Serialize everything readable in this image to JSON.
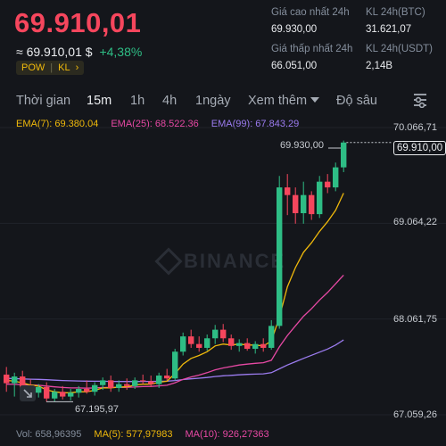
{
  "header": {
    "price": "69.910,01",
    "approx_prefix": "≈",
    "approx_value": "69.910,01 $",
    "change": "+4,38%",
    "tags": [
      "POW",
      "KL"
    ],
    "tag_arrow": "›"
  },
  "stats": {
    "high_label": "Giá cao nhất 24h",
    "high_value": "69.930,00",
    "vol_btc_label": "KL 24h(BTC)",
    "vol_btc_value": "31.621,07",
    "low_label": "Giá thấp nhất 24h",
    "low_value": "66.051,00",
    "vol_usdt_label": "KL 24h(USDT)",
    "vol_usdt_value": "2,14B"
  },
  "tabs": {
    "time": "Thời gian",
    "m15": "15m",
    "h1": "1h",
    "h4": "4h",
    "day1": "1ngày",
    "more": "Xem thêm",
    "depth": "Độ sâu"
  },
  "ema": {
    "ema7": "EMA(7): 69.380,04",
    "ema25": "EMA(25): 68.522,36",
    "ema99": "EMA(99): 67.843,29"
  },
  "volume": {
    "vol": "Vol: 658,96395",
    "ma5": "MA(5): 577,97983",
    "ma10": "MA(10): 926,27363"
  },
  "chart_data": {
    "type": "candlestick",
    "y_axis_labels": [
      "70.066,71",
      "69.064,22",
      "68.061,75",
      "67.059,26"
    ],
    "y_axis_values": [
      70066.71,
      69064.22,
      68061.75,
      67059.26
    ],
    "high_marker": "69.930,00",
    "low_marker": "67.195,97",
    "last_price_label": "69.910,00",
    "watermark": "BINANCE",
    "colors": {
      "up": "#2ebd85",
      "down": "#f6465d",
      "ema7": "#f0b90b",
      "ema25": "#e749a4",
      "ema99": "#9c7cf0"
    },
    "candles": [
      {
        "o": 67480,
        "h": 67560,
        "l": 67300,
        "c": 67390
      },
      {
        "o": 67390,
        "h": 67500,
        "l": 67250,
        "c": 67460
      },
      {
        "o": 67460,
        "h": 67520,
        "l": 67300,
        "c": 67340
      },
      {
        "o": 67340,
        "h": 67430,
        "l": 67230,
        "c": 67290
      },
      {
        "o": 67290,
        "h": 67380,
        "l": 67240,
        "c": 67350
      },
      {
        "o": 67350,
        "h": 67400,
        "l": 67196,
        "c": 67230
      },
      {
        "o": 67230,
        "h": 67330,
        "l": 67196,
        "c": 67300
      },
      {
        "o": 67300,
        "h": 67360,
        "l": 67220,
        "c": 67250
      },
      {
        "o": 67250,
        "h": 67330,
        "l": 67210,
        "c": 67290
      },
      {
        "o": 67290,
        "h": 67360,
        "l": 67240,
        "c": 67330
      },
      {
        "o": 67330,
        "h": 67420,
        "l": 67280,
        "c": 67300
      },
      {
        "o": 67300,
        "h": 67400,
        "l": 67260,
        "c": 67370
      },
      {
        "o": 67370,
        "h": 67450,
        "l": 67320,
        "c": 67420
      },
      {
        "o": 67420,
        "h": 67470,
        "l": 67300,
        "c": 67340
      },
      {
        "o": 67340,
        "h": 67420,
        "l": 67300,
        "c": 67380
      },
      {
        "o": 67380,
        "h": 67440,
        "l": 67320,
        "c": 67360
      },
      {
        "o": 67360,
        "h": 67450,
        "l": 67330,
        "c": 67420
      },
      {
        "o": 67420,
        "h": 67480,
        "l": 67380,
        "c": 67410
      },
      {
        "o": 67410,
        "h": 67470,
        "l": 67350,
        "c": 67380
      },
      {
        "o": 67380,
        "h": 67500,
        "l": 67340,
        "c": 67470
      },
      {
        "o": 67470,
        "h": 67540,
        "l": 67420,
        "c": 67440
      },
      {
        "o": 67440,
        "h": 67750,
        "l": 67420,
        "c": 67720
      },
      {
        "o": 67720,
        "h": 67920,
        "l": 67680,
        "c": 67880
      },
      {
        "o": 67880,
        "h": 67950,
        "l": 67760,
        "c": 67800
      },
      {
        "o": 67800,
        "h": 67880,
        "l": 67720,
        "c": 67760
      },
      {
        "o": 67760,
        "h": 67900,
        "l": 67730,
        "c": 67860
      },
      {
        "o": 67860,
        "h": 68000,
        "l": 67800,
        "c": 67950
      },
      {
        "o": 67950,
        "h": 68010,
        "l": 67820,
        "c": 67860
      },
      {
        "o": 67860,
        "h": 67900,
        "l": 67740,
        "c": 67780
      },
      {
        "o": 67780,
        "h": 67850,
        "l": 67720,
        "c": 67810
      },
      {
        "o": 67810,
        "h": 67860,
        "l": 67730,
        "c": 67750
      },
      {
        "o": 67750,
        "h": 67830,
        "l": 67700,
        "c": 67800
      },
      {
        "o": 67800,
        "h": 67860,
        "l": 67720,
        "c": 67760
      },
      {
        "o": 67760,
        "h": 68050,
        "l": 67740,
        "c": 67990
      },
      {
        "o": 67990,
        "h": 69560,
        "l": 67960,
        "c": 69440
      },
      {
        "o": 69440,
        "h": 69580,
        "l": 69150,
        "c": 69360
      },
      {
        "o": 69360,
        "h": 69440,
        "l": 69060,
        "c": 69170
      },
      {
        "o": 69170,
        "h": 69500,
        "l": 69060,
        "c": 69360
      },
      {
        "o": 69360,
        "h": 69400,
        "l": 69100,
        "c": 69160
      },
      {
        "o": 69160,
        "h": 69560,
        "l": 69120,
        "c": 69500
      },
      {
        "o": 69500,
        "h": 69580,
        "l": 69380,
        "c": 69440
      },
      {
        "o": 69440,
        "h": 69700,
        "l": 69400,
        "c": 69650
      },
      {
        "o": 69650,
        "h": 69930,
        "l": 69600,
        "c": 69910
      }
    ],
    "ema7_line": [
      67420,
      67410,
      67395,
      67370,
      67360,
      67320,
      67300,
      67290,
      67290,
      67300,
      67300,
      67315,
      67340,
      67340,
      67350,
      67352,
      67370,
      67380,
      67380,
      67400,
      67410,
      67490,
      67590,
      67650,
      67680,
      67720,
      67780,
      67800,
      67790,
      67800,
      67790,
      67790,
      67780,
      67830,
      68080,
      68400,
      68600,
      68760,
      68860,
      68980,
      69080,
      69200,
      69380
    ],
    "ema25_line": [
      67380,
      67378,
      67375,
      67370,
      67368,
      67360,
      67352,
      67345,
      67340,
      67340,
      67338,
      67340,
      67345,
      67345,
      67346,
      67347,
      67350,
      67354,
      67356,
      67362,
      67368,
      67395,
      67430,
      67455,
      67475,
      67500,
      67530,
      67550,
      67565,
      67580,
      67590,
      67598,
      67605,
      67630,
      67770,
      67890,
      67990,
      68090,
      68170,
      68260,
      68340,
      68430,
      68522
    ],
    "ema99_line": [
      67440,
      67438,
      67435,
      67432,
      67430,
      67426,
      67422,
      67418,
      67415,
      67413,
      67411,
      67410,
      67410,
      67409,
      67408,
      67408,
      67408,
      67409,
      67409,
      67410,
      67411,
      67418,
      67428,
      67436,
      67442,
      67450,
      67460,
      67467,
      67472,
      67478,
      67482,
      67485,
      67488,
      67500,
      67540,
      67580,
      67615,
      67650,
      67682,
      67715,
      67748,
      67790,
      67843
    ]
  }
}
